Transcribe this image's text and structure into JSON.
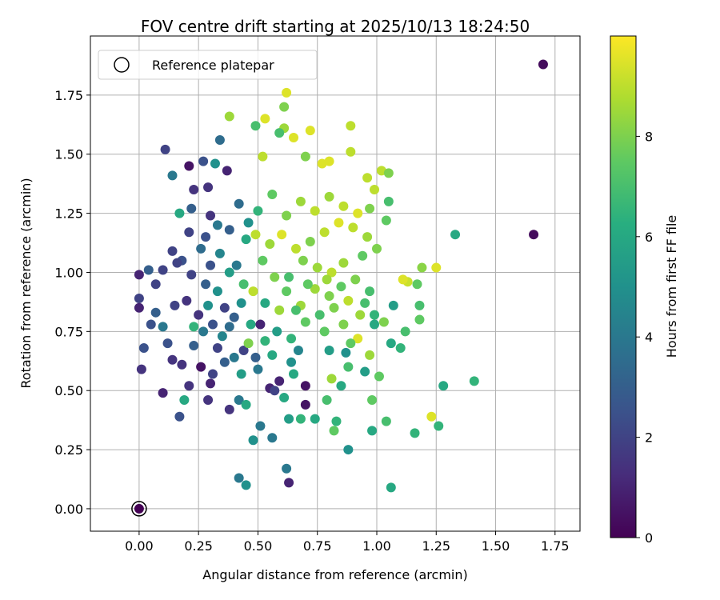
{
  "chart_data": {
    "type": "scatter",
    "title": "FOV centre drift starting at 2025/10/13 18:24:50",
    "xlabel": "Angular distance from reference (arcmin)",
    "ylabel": "Rotation from reference (arcmin)",
    "xlim": [
      -0.205,
      1.855
    ],
    "ylim": [
      -0.095,
      2.0
    ],
    "xticks": [
      "0.00",
      "0.25",
      "0.50",
      "0.75",
      "1.00",
      "1.25",
      "1.50",
      "1.75"
    ],
    "xtick_values": [
      0,
      0.25,
      0.5,
      0.75,
      1.0,
      1.25,
      1.5,
      1.75
    ],
    "yticks": [
      "0.00",
      "0.25",
      "0.50",
      "0.75",
      "1.00",
      "1.25",
      "1.50",
      "1.75"
    ],
    "ytick_values": [
      0,
      0.25,
      0.5,
      0.75,
      1.0,
      1.25,
      1.5,
      1.75
    ],
    "grid": true,
    "legend": {
      "placement": "top-left",
      "entries": [
        "Reference platepar"
      ]
    },
    "reference_point": [
      0,
      0
    ],
    "colorbar": {
      "label": "Hours from first FF file",
      "range": [
        0,
        10
      ],
      "ticks": [
        "0",
        "2",
        "4",
        "6",
        "8"
      ],
      "tick_values": [
        0,
        2,
        4,
        6,
        8
      ],
      "colormap": "viridis"
    },
    "point_format": [
      "x_arcmin",
      "y_arcmin",
      "hours"
    ],
    "points": [
      [
        0,
        0,
        0
      ],
      [
        1.7,
        1.88,
        0.3
      ],
      [
        1.66,
        1.16,
        0.3
      ],
      [
        0.63,
        0.11,
        1
      ],
      [
        0.62,
        0.17,
        4
      ],
      [
        0.42,
        0.13,
        4
      ],
      [
        0.45,
        0.1,
        5
      ],
      [
        1.06,
        0.09,
        6
      ],
      [
        0.88,
        0.25,
        5
      ],
      [
        0.98,
        0.33,
        6
      ],
      [
        0.51,
        0.35,
        4
      ],
      [
        0.56,
        0.3,
        4
      ],
      [
        0.48,
        0.29,
        5
      ],
      [
        1.16,
        0.32,
        6.5
      ],
      [
        1.26,
        0.35,
        6.5
      ],
      [
        1.23,
        0.39,
        9.5
      ],
      [
        1.28,
        0.52,
        6
      ],
      [
        1.41,
        0.54,
        6.5
      ],
      [
        1.33,
        1.16,
        6
      ],
      [
        1.25,
        1.02,
        9.5
      ],
      [
        1.19,
        1.02,
        8.2
      ],
      [
        1.17,
        0.95,
        7.5
      ],
      [
        1.13,
        0.96,
        9.2
      ],
      [
        1.11,
        0.97,
        9.5
      ],
      [
        1.18,
        0.8,
        7.5
      ],
      [
        1.18,
        0.86,
        7
      ],
      [
        1.12,
        0.75,
        7
      ],
      [
        1.1,
        0.68,
        6.5
      ],
      [
        1.06,
        0.7,
        6
      ],
      [
        1.07,
        0.86,
        5.5
      ],
      [
        1.04,
        0.37,
        7
      ],
      [
        1.01,
        0.56,
        7.5
      ],
      [
        0.98,
        0.46,
        7.5
      ],
      [
        0.97,
        0.65,
        8.5
      ],
      [
        0.95,
        0.58,
        5.5
      ],
      [
        1.02,
        1.43,
        9
      ],
      [
        1.05,
        1.42,
        8
      ],
      [
        1.05,
        1.3,
        7
      ],
      [
        1.04,
        1.22,
        7.5
      ],
      [
        0.96,
        1.4,
        9
      ],
      [
        0.99,
        1.35,
        9
      ],
      [
        0.89,
        1.51,
        9
      ],
      [
        0.89,
        1.62,
        9
      ],
      [
        0.77,
        1.46,
        9.5
      ],
      [
        0.8,
        1.47,
        9.5
      ],
      [
        0.72,
        1.6,
        9.5
      ],
      [
        0.62,
        1.76,
        9.5
      ],
      [
        0.61,
        1.7,
        8
      ],
      [
        0.61,
        1.61,
        8.5
      ],
      [
        0.59,
        1.59,
        7
      ],
      [
        0.49,
        1.62,
        7
      ],
      [
        0.53,
        1.65,
        9.5
      ],
      [
        0.38,
        1.66,
        8.5
      ],
      [
        0.65,
        1.57,
        9.5
      ],
      [
        0.7,
        1.49,
        8
      ],
      [
        0.52,
        1.49,
        9
      ],
      [
        0.11,
        1.52,
        2
      ],
      [
        0.14,
        1.41,
        4
      ],
      [
        0.27,
        1.47,
        2.5
      ],
      [
        0.21,
        1.45,
        0.5
      ],
      [
        0.32,
        1.46,
        5
      ],
      [
        0.37,
        1.43,
        1
      ],
      [
        0.34,
        1.56,
        3.5
      ],
      [
        0.23,
        1.35,
        1.5
      ],
      [
        0.29,
        1.36,
        1.5
      ],
      [
        0.17,
        1.25,
        6
      ],
      [
        0.22,
        1.27,
        3
      ],
      [
        0.3,
        1.24,
        1.5
      ],
      [
        0.42,
        1.29,
        3.5
      ],
      [
        0.04,
        1.01,
        3
      ],
      [
        0.0,
        0.99,
        1
      ],
      [
        0.0,
        0.89,
        2
      ],
      [
        0.0,
        0.85,
        1
      ],
      [
        0.07,
        0.95,
        2
      ],
      [
        0.1,
        0.77,
        4
      ],
      [
        0.12,
        0.7,
        2.5
      ],
      [
        0.02,
        0.68,
        2.5
      ],
      [
        0.01,
        0.59,
        1.5
      ],
      [
        0.1,
        0.49,
        1
      ],
      [
        0.17,
        0.39,
        2.5
      ],
      [
        0.19,
        0.46,
        6
      ],
      [
        0.18,
        0.61,
        1.5
      ],
      [
        0.23,
        0.69,
        3
      ],
      [
        0.23,
        0.77,
        6.5
      ],
      [
        0.27,
        0.75,
        4
      ],
      [
        0.29,
        0.86,
        5
      ],
      [
        0.3,
        0.53,
        1
      ],
      [
        0.31,
        0.57,
        2
      ],
      [
        0.38,
        0.42,
        1.5
      ],
      [
        0.42,
        0.46,
        4
      ],
      [
        0.45,
        0.44,
        6
      ],
      [
        0.43,
        0.57,
        5.5
      ],
      [
        0.36,
        0.62,
        3
      ],
      [
        0.4,
        0.64,
        4
      ],
      [
        0.44,
        0.67,
        2
      ],
      [
        0.46,
        0.7,
        8
      ],
      [
        0.5,
        0.59,
        4
      ],
      [
        0.51,
        0.78,
        1
      ],
      [
        0.55,
        0.51,
        1
      ],
      [
        0.57,
        0.5,
        2
      ],
      [
        0.59,
        0.54,
        1
      ],
      [
        0.61,
        0.47,
        6
      ],
      [
        0.63,
        0.38,
        5.5
      ],
      [
        0.68,
        0.38,
        6.5
      ],
      [
        0.65,
        0.57,
        6
      ],
      [
        0.67,
        0.67,
        4.5
      ],
      [
        0.7,
        0.52,
        0.5
      ],
      [
        0.7,
        0.44,
        0.5
      ],
      [
        0.74,
        0.38,
        6
      ],
      [
        0.79,
        0.46,
        7
      ],
      [
        0.81,
        0.55,
        8.5
      ],
      [
        0.82,
        0.33,
        7.5
      ],
      [
        0.83,
        0.37,
        6.5
      ],
      [
        0.85,
        0.52,
        6
      ],
      [
        0.8,
        0.67,
        5.5
      ],
      [
        0.87,
        0.66,
        5
      ],
      [
        0.88,
        0.6,
        7
      ],
      [
        0.78,
        0.75,
        7.5
      ],
      [
        0.86,
        0.78,
        8
      ],
      [
        0.92,
        0.72,
        9.5
      ],
      [
        0.93,
        0.82,
        8.5
      ],
      [
        0.88,
        0.88,
        9
      ],
      [
        0.8,
        0.9,
        8
      ],
      [
        0.74,
        0.93,
        8.5
      ],
      [
        0.68,
        0.86,
        8.5
      ],
      [
        0.62,
        0.92,
        7.5
      ],
      [
        0.57,
        0.98,
        8
      ],
      [
        0.52,
        1.05,
        7.5
      ],
      [
        0.48,
        0.92,
        9
      ],
      [
        0.43,
        0.87,
        5
      ],
      [
        0.4,
        0.81,
        3
      ],
      [
        0.36,
        0.85,
        2
      ],
      [
        0.33,
        0.92,
        5
      ],
      [
        0.28,
        0.95,
        3
      ],
      [
        0.22,
        0.99,
        2
      ],
      [
        0.18,
        1.05,
        2.5
      ],
      [
        0.14,
        1.09,
        2
      ],
      [
        0.26,
        1.1,
        3.5
      ],
      [
        0.34,
        1.08,
        4.5
      ],
      [
        0.41,
        1.03,
        4
      ],
      [
        0.45,
        1.14,
        6
      ],
      [
        0.49,
        1.16,
        9
      ],
      [
        0.55,
        1.12,
        8.5
      ],
      [
        0.6,
        1.16,
        9.5
      ],
      [
        0.66,
        1.1,
        9
      ],
      [
        0.72,
        1.13,
        8
      ],
      [
        0.78,
        1.17,
        9
      ],
      [
        0.84,
        1.21,
        9.5
      ],
      [
        0.9,
        1.19,
        9
      ],
      [
        0.96,
        1.15,
        8.5
      ],
      [
        1.0,
        1.1,
        8
      ],
      [
        0.94,
        1.07,
        7.5
      ],
      [
        0.86,
        1.04,
        8.5
      ],
      [
        0.81,
        1.0,
        9
      ],
      [
        0.75,
        1.02,
        8.5
      ],
      [
        0.69,
        1.05,
        8
      ],
      [
        0.63,
        0.98,
        7
      ],
      [
        0.71,
        0.95,
        7.5
      ],
      [
        0.79,
        0.97,
        8.5
      ],
      [
        0.85,
        0.94,
        7.5
      ],
      [
        0.91,
        0.97,
        8
      ],
      [
        0.97,
        0.92,
        7
      ],
      [
        0.99,
        0.82,
        6.5
      ],
      [
        0.99,
        0.78,
        6
      ],
      [
        1.03,
        0.79,
        8
      ],
      [
        0.62,
        1.24,
        8
      ],
      [
        0.68,
        1.3,
        8.5
      ],
      [
        0.74,
        1.26,
        9
      ],
      [
        0.8,
        1.32,
        8.5
      ],
      [
        0.86,
        1.28,
        9
      ],
      [
        0.92,
        1.25,
        9.5
      ],
      [
        0.97,
        1.27,
        8
      ],
      [
        0.56,
        1.33,
        7.5
      ],
      [
        0.5,
        1.26,
        6.5
      ],
      [
        0.46,
        1.21,
        5
      ],
      [
        0.38,
        1.18,
        3
      ],
      [
        0.33,
        1.2,
        4
      ],
      [
        0.28,
        1.15,
        2.5
      ],
      [
        0.21,
        1.17,
        2
      ],
      [
        0.16,
        1.04,
        2
      ],
      [
        0.1,
        1.01,
        2
      ],
      [
        0.15,
        0.86,
        2
      ],
      [
        0.2,
        0.88,
        1.5
      ],
      [
        0.25,
        0.82,
        1.5
      ],
      [
        0.31,
        0.78,
        2.5
      ],
      [
        0.35,
        0.73,
        4.5
      ],
      [
        0.38,
        0.77,
        3.5
      ],
      [
        0.47,
        0.78,
        6
      ],
      [
        0.53,
        0.71,
        6.5
      ],
      [
        0.58,
        0.75,
        5.5
      ],
      [
        0.64,
        0.72,
        6.5
      ],
      [
        0.7,
        0.79,
        7.5
      ],
      [
        0.76,
        0.82,
        7
      ],
      [
        0.82,
        0.85,
        8
      ],
      [
        0.89,
        0.7,
        7.5
      ],
      [
        0.95,
        0.87,
        7
      ],
      [
        0.64,
        0.62,
        5
      ],
      [
        0.56,
        0.65,
        6
      ],
      [
        0.49,
        0.64,
        3
      ],
      [
        0.33,
        0.68,
        2
      ],
      [
        0.26,
        0.6,
        0.5
      ],
      [
        0.29,
        0.46,
        1.5
      ],
      [
        0.21,
        0.52,
        1.5
      ],
      [
        0.14,
        0.63,
        1.5
      ],
      [
        0.05,
        0.78,
        2.5
      ],
      [
        0.07,
        0.83,
        3
      ],
      [
        0.38,
        1.0,
        5.5
      ],
      [
        0.3,
        1.03,
        2.5
      ],
      [
        0.44,
        0.95,
        7
      ],
      [
        0.53,
        0.87,
        6
      ],
      [
        0.59,
        0.84,
        8.5
      ],
      [
        0.66,
        0.84,
        7
      ]
    ]
  }
}
